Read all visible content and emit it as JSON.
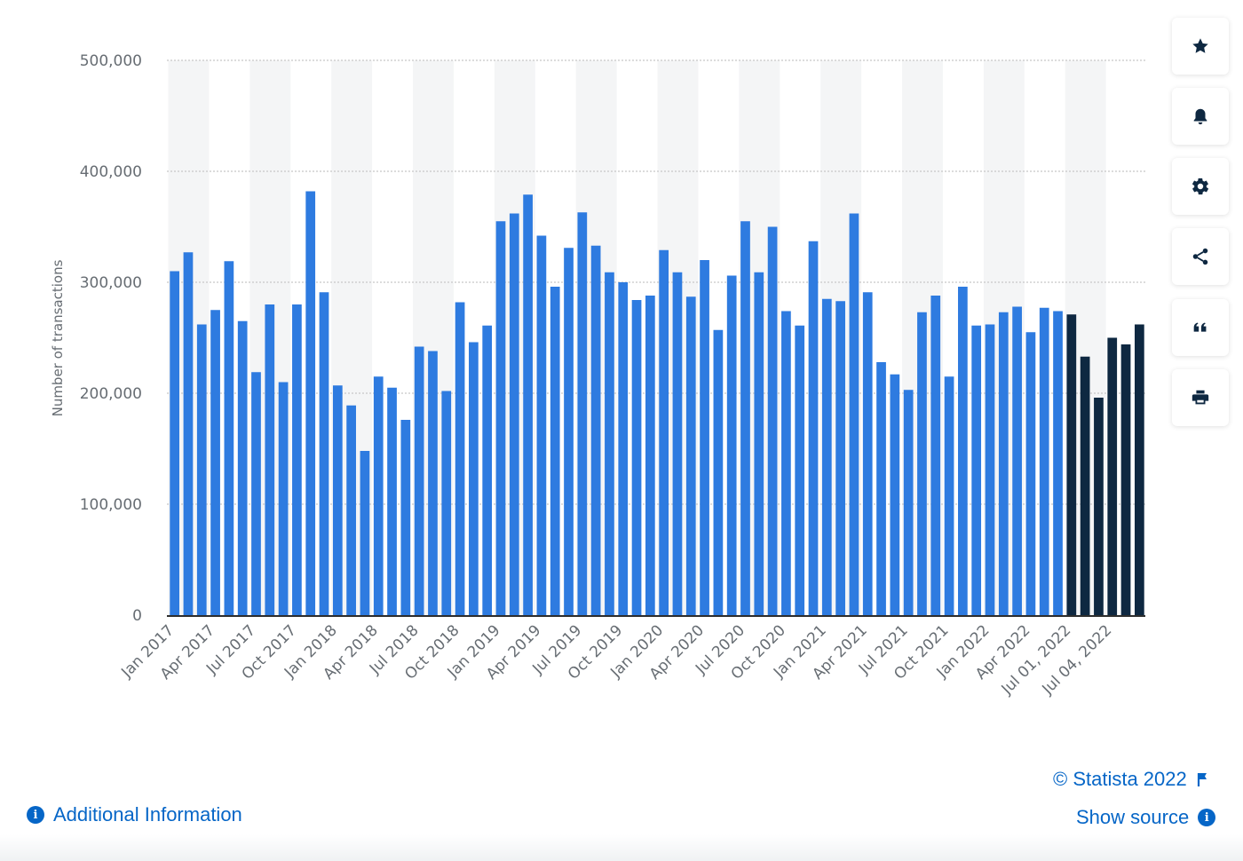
{
  "chart_data": {
    "type": "bar",
    "ylabel": "Number of transactions",
    "ylim": [
      0,
      500000
    ],
    "yticks": [
      0,
      100000,
      200000,
      300000,
      400000,
      500000
    ],
    "ytick_labels": [
      "0",
      "100,000",
      "200,000",
      "300,000",
      "400,000",
      "500,000"
    ],
    "grid": true,
    "categories": [
      "Jan 2017",
      "Feb 2017",
      "Mar 2017",
      "Apr 2017",
      "May 2017",
      "Jun 2017",
      "Jul 2017",
      "Aug 2017",
      "Sep 2017",
      "Oct 2017",
      "Nov 2017",
      "Dec 2017",
      "Jan 2018",
      "Feb 2018",
      "Mar 2018",
      "Apr 2018",
      "May 2018",
      "Jun 2018",
      "Jul 2018",
      "Aug 2018",
      "Sep 2018",
      "Oct 2018",
      "Nov 2018",
      "Dec 2018",
      "Jan 2019",
      "Feb 2019",
      "Mar 2019",
      "Apr 2019",
      "May 2019",
      "Jun 2019",
      "Jul 2019",
      "Aug 2019",
      "Sep 2019",
      "Oct 2019",
      "Nov 2019",
      "Dec 2019",
      "Jan 2020",
      "Feb 2020",
      "Mar 2020",
      "Apr 2020",
      "May 2020",
      "Jun 2020",
      "Jul 2020",
      "Aug 2020",
      "Sep 2020",
      "Oct 2020",
      "Nov 2020",
      "Dec 2020",
      "Jan 2021",
      "Feb 2021",
      "Mar 2021",
      "Apr 2021",
      "May 2021",
      "Jun 2021",
      "Jul 2021",
      "Aug 2021",
      "Sep 2021",
      "Oct 2021",
      "Nov 2021",
      "Dec 2021",
      "Jan 2022",
      "Feb 2022",
      "Mar 2022",
      "Apr 2022",
      "May 2022",
      "Jun 2022",
      "Jul 01, 2022",
      "Jul 02, 2022",
      "Jul 03, 2022",
      "Jul 04, 2022",
      "Jul 05, 2022",
      "Jul 06, 2022"
    ],
    "xtick_labels": [
      {
        "index": 0,
        "text": "Jan 2017"
      },
      {
        "index": 3,
        "text": "Apr 2017"
      },
      {
        "index": 6,
        "text": "Jul 2017"
      },
      {
        "index": 9,
        "text": "Oct 2017"
      },
      {
        "index": 12,
        "text": "Jan 2018"
      },
      {
        "index": 15,
        "text": "Apr 2018"
      },
      {
        "index": 18,
        "text": "Jul 2018"
      },
      {
        "index": 21,
        "text": "Oct 2018"
      },
      {
        "index": 24,
        "text": "Jan 2019"
      },
      {
        "index": 27,
        "text": "Apr 2019"
      },
      {
        "index": 30,
        "text": "Jul 2019"
      },
      {
        "index": 33,
        "text": "Oct 2019"
      },
      {
        "index": 36,
        "text": "Jan 2020"
      },
      {
        "index": 39,
        "text": "Apr 2020"
      },
      {
        "index": 42,
        "text": "Jul 2020"
      },
      {
        "index": 45,
        "text": "Oct 2020"
      },
      {
        "index": 48,
        "text": "Jan 2021"
      },
      {
        "index": 51,
        "text": "Apr 2021"
      },
      {
        "index": 54,
        "text": "Jul 2021"
      },
      {
        "index": 57,
        "text": "Oct 2021"
      },
      {
        "index": 60,
        "text": "Jan 2022"
      },
      {
        "index": 63,
        "text": "Apr 2022"
      },
      {
        "index": 66,
        "text": "Jul 01, 2022"
      },
      {
        "index": 69,
        "text": "Jul 04, 2022"
      }
    ],
    "values": [
      310000,
      327000,
      262000,
      275000,
      319000,
      265000,
      219000,
      280000,
      210000,
      280000,
      382000,
      291000,
      207000,
      189000,
      148000,
      215000,
      205000,
      176000,
      242000,
      238000,
      202000,
      282000,
      246000,
      261000,
      355000,
      362000,
      379000,
      342000,
      296000,
      331000,
      363000,
      333000,
      309000,
      300000,
      284000,
      288000,
      329000,
      309000,
      287000,
      320000,
      257000,
      306000,
      355000,
      309000,
      350000,
      274000,
      261000,
      337000,
      285000,
      283000,
      362000,
      291000,
      228000,
      217000,
      203000,
      273000,
      288000,
      215000,
      296000,
      261000,
      262000,
      273000,
      278000,
      255000,
      277000,
      274000,
      271000,
      233000,
      196000,
      250000,
      244000,
      262000
    ],
    "bar_colors": {
      "monthly": "#2e7be0",
      "daily": "#0e2841"
    },
    "daily_start_index": 66
  },
  "sidebar_icons": [
    "star-icon",
    "bell-icon",
    "gear-icon",
    "share-icon",
    "quote-icon",
    "print-icon"
  ],
  "footer": {
    "copyright": "© Statista 2022",
    "additional_info": "Additional Information",
    "show_source": "Show source"
  },
  "colors": {
    "link": "#0666c7",
    "band": "#f4f5f6",
    "grid": "#c8c8c8",
    "axis": "#2d2d2d"
  }
}
